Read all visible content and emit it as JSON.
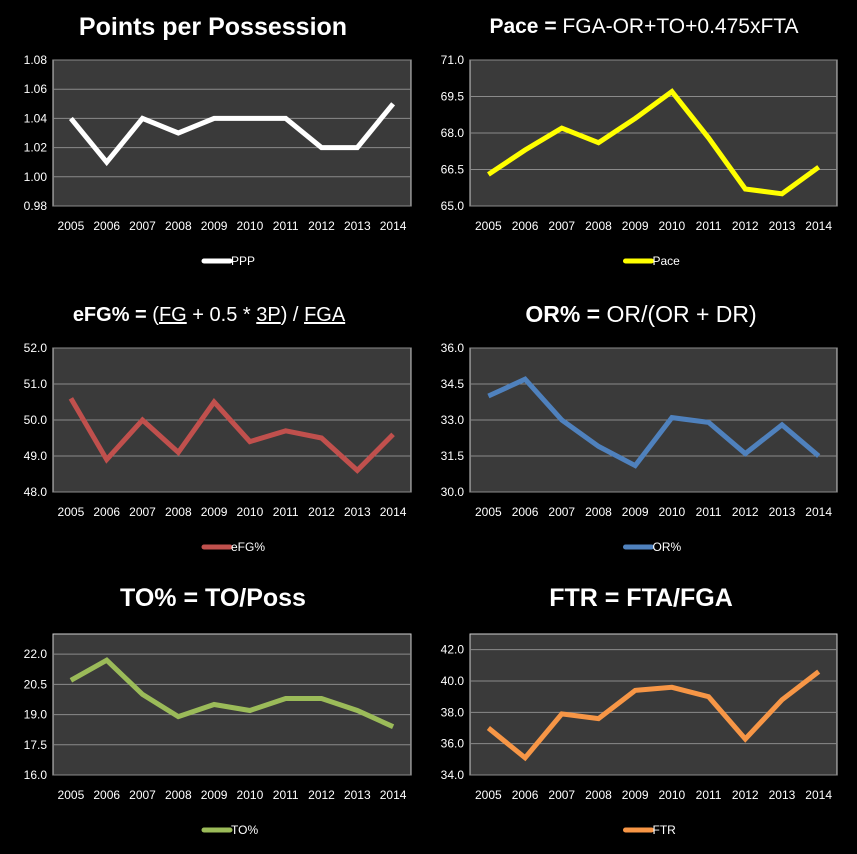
{
  "chart_data": [
    {
      "type": "line",
      "title": "Points per Possession",
      "categories": [
        "2005",
        "2006",
        "2007",
        "2008",
        "2009",
        "2010",
        "2011",
        "2012",
        "2013",
        "2014"
      ],
      "series": [
        {
          "name": "PPP",
          "values": [
            1.04,
            1.01,
            1.04,
            1.03,
            1.04,
            1.04,
            1.04,
            1.02,
            1.02,
            1.05
          ],
          "color": "#ffffff"
        }
      ],
      "ylim": [
        0.98,
        1.08
      ],
      "yticks": [
        "0.98",
        "1.00",
        "1.02",
        "1.04",
        "1.06",
        "1.08"
      ],
      "grid": true,
      "legend": "bottom"
    },
    {
      "type": "line",
      "title": "Pace = FGA-OR+TO+0.475xFTA",
      "categories": [
        "2005",
        "2006",
        "2007",
        "2008",
        "2009",
        "2010",
        "2011",
        "2012",
        "2013",
        "2014"
      ],
      "series": [
        {
          "name": "Pace",
          "values": [
            66.3,
            67.3,
            68.2,
            67.6,
            68.6,
            69.7,
            67.8,
            65.7,
            65.5,
            66.6
          ],
          "color": "#ffff00"
        }
      ],
      "ylim": [
        65.0,
        71.0
      ],
      "yticks": [
        "65.0",
        "66.5",
        "68.0",
        "69.5",
        "71.0"
      ],
      "grid": true,
      "legend": "bottom"
    },
    {
      "type": "line",
      "title": "eFG% = (FG + 0.5 * 3P) / FGA",
      "categories": [
        "2005",
        "2006",
        "2007",
        "2008",
        "2009",
        "2010",
        "2011",
        "2012",
        "2013",
        "2014"
      ],
      "series": [
        {
          "name": "eFG%",
          "values": [
            50.6,
            48.9,
            50.0,
            49.1,
            50.5,
            49.4,
            49.7,
            49.5,
            48.6,
            49.6
          ],
          "color": "#c0504d"
        }
      ],
      "ylim": [
        48.0,
        52.0
      ],
      "yticks": [
        "48.0",
        "49.0",
        "50.0",
        "51.0",
        "52.0"
      ],
      "grid": true,
      "legend": "bottom"
    },
    {
      "type": "line",
      "title": "OR% = OR/(OR + DR)",
      "categories": [
        "2005",
        "2006",
        "2007",
        "2008",
        "2009",
        "2010",
        "2011",
        "2012",
        "2013",
        "2014"
      ],
      "series": [
        {
          "name": "OR%",
          "values": [
            34.0,
            34.7,
            33.0,
            31.9,
            31.1,
            33.1,
            32.9,
            31.6,
            32.8,
            31.5
          ],
          "color": "#4f81bd"
        }
      ],
      "ylim": [
        30.0,
        36.0
      ],
      "yticks": [
        "30.0",
        "31.5",
        "33.0",
        "34.5",
        "36.0"
      ],
      "grid": true,
      "legend": "bottom"
    },
    {
      "type": "line",
      "title": "TO% = TO/Poss",
      "categories": [
        "2005",
        "2006",
        "2007",
        "2008",
        "2009",
        "2010",
        "2011",
        "2012",
        "2013",
        "2014"
      ],
      "series": [
        {
          "name": "TO%",
          "values": [
            20.7,
            21.7,
            20.0,
            18.9,
            19.5,
            19.2,
            19.8,
            19.8,
            19.2,
            18.4
          ],
          "color": "#9bbb59"
        }
      ],
      "ylim": [
        16.0,
        23.0
      ],
      "yticks": [
        "16.0",
        "17.5",
        "19.0",
        "20.5",
        "22.0"
      ],
      "grid": true,
      "legend": "bottom"
    },
    {
      "type": "line",
      "title": "FTR = FTA/FGA",
      "categories": [
        "2005",
        "2006",
        "2007",
        "2008",
        "2009",
        "2010",
        "2011",
        "2012",
        "2013",
        "2014"
      ],
      "series": [
        {
          "name": "FTR",
          "values": [
            37.0,
            35.1,
            37.9,
            37.6,
            39.4,
            39.6,
            39.0,
            36.3,
            38.8,
            40.6
          ],
          "color": "#f79646"
        }
      ],
      "ylim": [
        34.0,
        43.0
      ],
      "yticks": [
        "34.0",
        "36.0",
        "38.0",
        "40.0",
        "42.0"
      ],
      "grid": true,
      "legend": "bottom"
    }
  ]
}
